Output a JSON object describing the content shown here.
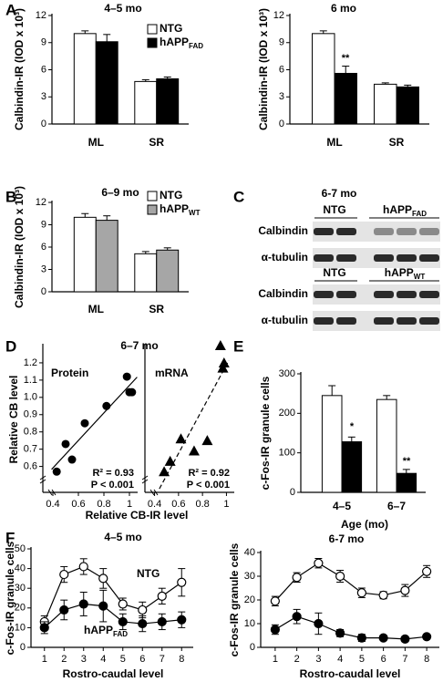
{
  "panel_labels": [
    "A",
    "B",
    "C",
    "D",
    "E",
    "F"
  ],
  "chart_data": [
    {
      "type": "bar",
      "title": "4–5 mo",
      "ylabel": "Calbindin-IR (IOD x 10³)",
      "categories": [
        "ML",
        "SR"
      ],
      "ylim": [
        0,
        12
      ],
      "yticks": [
        0,
        3,
        6,
        9,
        12
      ],
      "series": [
        {
          "name": "NTG",
          "color": "#ffffff",
          "values": [
            10,
            4.7
          ],
          "errors": [
            0.3,
            0.2
          ]
        },
        {
          "name": "hAPP",
          "subscript": "FAD",
          "color": "#000000",
          "values": [
            9.1,
            5.0
          ],
          "errors": [
            0.8,
            0.2
          ]
        }
      ]
    },
    {
      "type": "bar",
      "title": "6 mo",
      "ylabel": "Calbindin-IR (IOD x 10³)",
      "categories": [
        "ML",
        "SR"
      ],
      "ylim": [
        0,
        12
      ],
      "yticks": [
        0,
        3,
        6,
        9,
        12
      ],
      "annotations": [
        "**"
      ],
      "series": [
        {
          "color": "#ffffff",
          "values": [
            10,
            4.4
          ],
          "errors": [
            0.3,
            0.15
          ]
        },
        {
          "color": "#000000",
          "values": [
            5.6,
            4.1
          ],
          "errors": [
            0.8,
            0.2
          ]
        }
      ]
    },
    {
      "type": "bar",
      "title": "6–9 mo",
      "ylabel": "Calbindin-IR (IOD x 10³)",
      "categories": [
        "ML",
        "SR"
      ],
      "ylim": [
        0,
        12
      ],
      "yticks": [
        0,
        3,
        6,
        9,
        12
      ],
      "series": [
        {
          "name": "NTG",
          "color": "#ffffff",
          "values": [
            10,
            5.1
          ],
          "errors": [
            0.5,
            0.3
          ]
        },
        {
          "name": "hAPP",
          "subscript": "WT",
          "color": "#a6a6a6",
          "values": [
            9.6,
            5.6
          ],
          "errors": [
            0.6,
            0.3
          ]
        }
      ]
    },
    {
      "type": "scatter",
      "title": "6–7 mo",
      "subtitle": "Protein",
      "xlabel": "Relative CB-IR level",
      "ylabel": "Relative CB level",
      "marker": "circle",
      "fit": "solid",
      "color": "#000000",
      "x": [
        0.43,
        0.5,
        0.55,
        0.65,
        0.82,
        0.98,
        1.0,
        1.02
      ],
      "values": [
        0.57,
        0.73,
        0.64,
        0.85,
        0.95,
        1.12,
        1.03,
        1.03
      ],
      "xlim": [
        0.35,
        1.05
      ],
      "xticks": [
        0.4,
        0.6,
        0.8,
        1
      ],
      "ylim": [
        0.45,
        1.3
      ],
      "yticks": [
        0.6,
        0.7,
        0.8,
        0.9,
        {
          "value": 1,
          "label": "1.0"
        },
        1.1,
        1.2
      ],
      "annotations": [
        "R² = 0.93",
        "P < 0.001"
      ]
    },
    {
      "type": "scatter",
      "subtitle": "mRNA",
      "marker": "triangle",
      "fit": "dashed",
      "color": "#000000",
      "x": [
        0.48,
        0.53,
        0.62,
        0.73,
        0.84,
        0.95,
        0.97,
        0.98
      ],
      "values": [
        0.57,
        0.63,
        0.76,
        0.69,
        0.75,
        1.3,
        1.17,
        1.2
      ],
      "xlim": [
        0.35,
        1.05
      ],
      "xticks": [
        0.4,
        0.6,
        0.8,
        1
      ],
      "ylim": [
        0.45,
        1.3
      ],
      "annotations": [
        "R² = 0.92",
        "P < 0.001"
      ]
    },
    {
      "type": "bar",
      "ylabel": "c-Fos-IR granule cells",
      "xlabel": "Age (mo)",
      "categories": [
        "4–5",
        "6–7"
      ],
      "ylim": [
        0,
        300
      ],
      "yticks": [
        0,
        100,
        200,
        300
      ],
      "annotations": [
        "*",
        "**"
      ],
      "series": [
        {
          "color": "#ffffff",
          "values": [
            245,
            235
          ],
          "errors": [
            25,
            10
          ]
        },
        {
          "color": "#000000",
          "values": [
            128,
            48
          ],
          "errors": [
            12,
            10
          ]
        }
      ]
    },
    {
      "type": "line",
      "title": "4–5 mo",
      "ylabel": "c-Fos-IR granule cells",
      "xlabel": "Rostro-caudal level",
      "x": [
        1,
        2,
        3,
        4,
        5,
        6,
        7,
        8
      ],
      "xlim": [
        0.5,
        8.5
      ],
      "xticks": [
        1,
        2,
        3,
        4,
        5,
        6,
        7,
        8
      ],
      "ylim": [
        0,
        50
      ],
      "yticks": [
        0,
        10,
        20,
        30,
        40,
        50
      ],
      "series": [
        {
          "name": "NTG",
          "color": "#ffffff",
          "values": [
            13,
            37,
            41,
            35,
            22,
            19,
            26,
            33
          ],
          "errors": [
            3,
            4,
            4,
            5,
            3,
            4,
            4,
            7
          ]
        },
        {
          "name": "hAPP",
          "subscript": "FAD",
          "color": "#000000",
          "values": [
            10,
            19,
            22,
            21,
            13,
            12,
            13,
            14
          ],
          "errors": [
            3,
            5,
            6,
            8,
            4,
            4,
            4,
            4
          ]
        }
      ]
    },
    {
      "type": "line",
      "title": "6-7 mo",
      "ylabel": "c-Fos-IR granule cells",
      "xlabel": "Rostro-caudal level",
      "x": [
        1,
        2,
        3,
        4,
        5,
        6,
        7,
        8
      ],
      "xlim": [
        0.5,
        8.5
      ],
      "xticks": [
        1,
        2,
        3,
        4,
        5,
        6,
        7,
        8
      ],
      "ylim": [
        0,
        40
      ],
      "yticks": [
        0,
        10,
        20,
        30,
        40
      ],
      "series": [
        {
          "color": "#ffffff",
          "values": [
            19.5,
            29.5,
            35.5,
            30,
            23,
            22,
            24,
            32
          ],
          "errors": [
            2,
            2,
            2,
            2.5,
            2,
            1.5,
            2.5,
            2.5
          ]
        },
        {
          "color": "#000000",
          "values": [
            7.5,
            13,
            10,
            6,
            4,
            4,
            3.5,
            4.5
          ],
          "errors": [
            2,
            3,
            4.5,
            1.5,
            1.5,
            1,
            1,
            1
          ]
        }
      ]
    }
  ],
  "blot": {
    "title": "6-7 mo",
    "groups": [
      {
        "headers": [
          {
            "name": "NTG"
          },
          {
            "name": "hAPP",
            "subscript": "FAD"
          }
        ],
        "rows": [
          "Calbindin",
          "α-tubulin"
        ]
      },
      {
        "headers": [
          {
            "name": "NTG"
          },
          {
            "name": "hAPP",
            "subscript": "WT"
          }
        ],
        "rows": [
          "Calbindin",
          "α-tubulin"
        ]
      }
    ]
  }
}
